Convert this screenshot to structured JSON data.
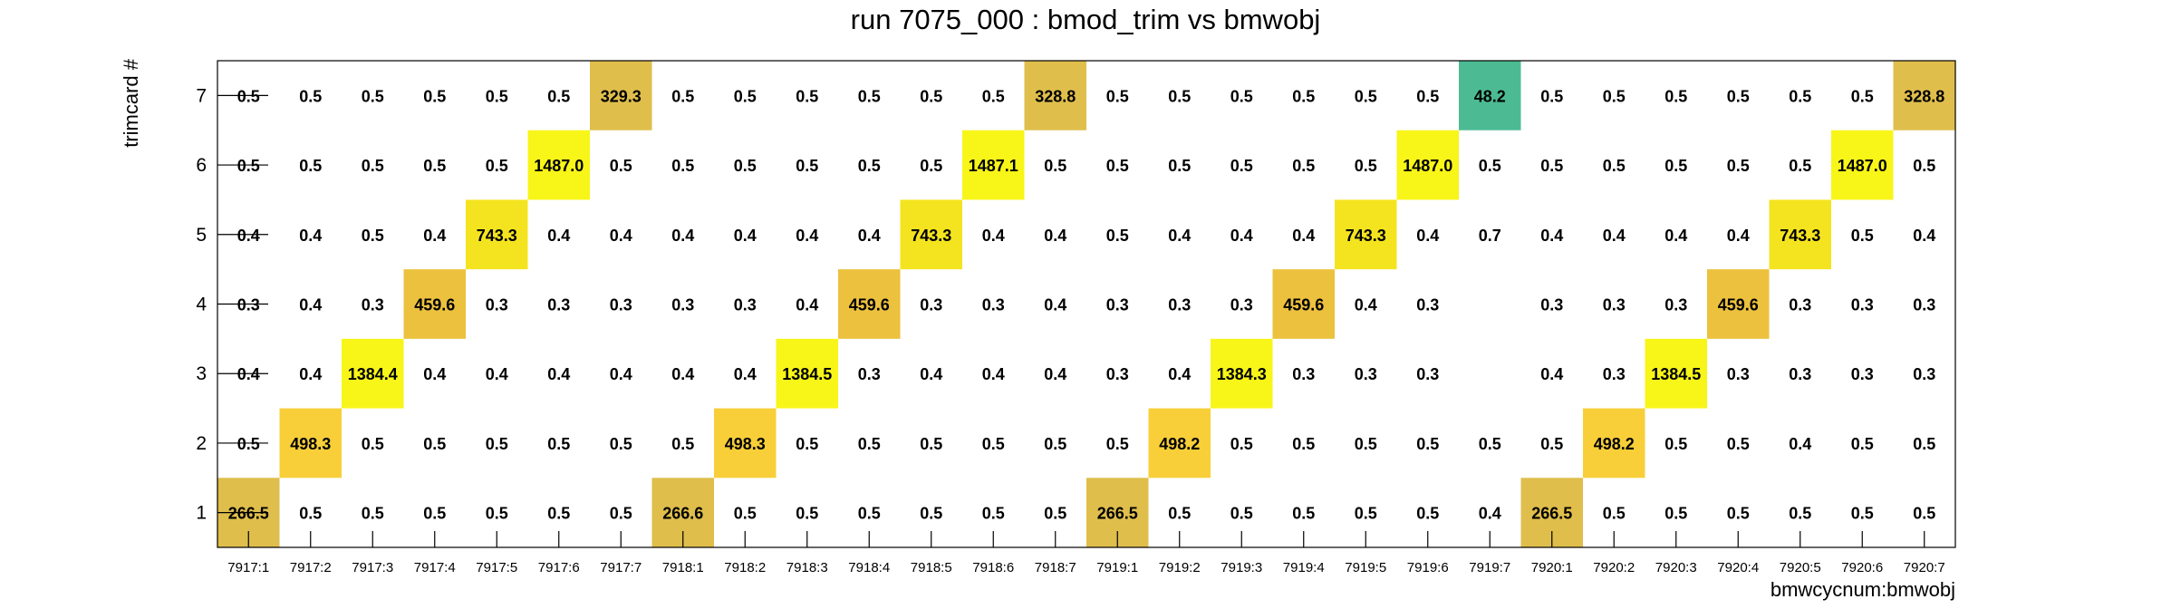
{
  "chart_data": {
    "type": "heatmap",
    "title": "run 7075_000 : bmod_trim vs bmwobj",
    "xlabel": "bmwcycnum:bmwobj",
    "ylabel": "trimcard #",
    "x_categories": [
      "7917:1",
      "7917:2",
      "7917:3",
      "7917:4",
      "7917:5",
      "7917:6",
      "7917:7",
      "7918:1",
      "7918:2",
      "7918:3",
      "7918:4",
      "7918:5",
      "7918:6",
      "7918:7",
      "7919:1",
      "7919:2",
      "7919:3",
      "7919:4",
      "7919:5",
      "7919:6",
      "7919:7",
      "7920:1",
      "7920:2",
      "7920:3",
      "7920:4",
      "7920:5",
      "7920:6",
      "7920:7"
    ],
    "y_categories": [
      "1",
      "2",
      "3",
      "4",
      "5",
      "6",
      "7"
    ],
    "values": [
      [
        266.5,
        0.5,
        0.5,
        0.5,
        0.5,
        0.5,
        0.5,
        266.6,
        0.5,
        0.5,
        0.5,
        0.5,
        0.5,
        0.5,
        266.5,
        0.5,
        0.5,
        0.5,
        0.5,
        0.5,
        0.4,
        266.5,
        0.5,
        0.5,
        0.5,
        0.5,
        0.5,
        0.5
      ],
      [
        0.5,
        498.3,
        0.5,
        0.5,
        0.5,
        0.5,
        0.5,
        0.5,
        498.3,
        0.5,
        0.5,
        0.5,
        0.5,
        0.5,
        0.5,
        498.2,
        0.5,
        0.5,
        0.5,
        0.5,
        0.5,
        0.5,
        498.2,
        0.5,
        0.5,
        0.4,
        0.5,
        0.5
      ],
      [
        0.4,
        0.4,
        1384.4,
        0.4,
        0.4,
        0.4,
        0.4,
        0.4,
        0.4,
        1384.5,
        0.3,
        0.4,
        0.4,
        0.4,
        0.3,
        0.4,
        1384.3,
        0.3,
        0.3,
        0.3,
        null,
        0.4,
        0.3,
        1384.5,
        0.3,
        0.3,
        0.3,
        0.3
      ],
      [
        0.3,
        0.4,
        0.3,
        459.6,
        0.3,
        0.3,
        0.3,
        0.3,
        0.3,
        0.4,
        459.6,
        0.3,
        0.3,
        0.4,
        0.3,
        0.3,
        0.3,
        459.6,
        0.4,
        0.3,
        null,
        0.3,
        0.3,
        0.3,
        459.6,
        0.3,
        0.3,
        0.3
      ],
      [
        0.4,
        0.4,
        0.5,
        0.4,
        743.3,
        0.4,
        0.4,
        0.4,
        0.4,
        0.4,
        0.4,
        743.3,
        0.4,
        0.4,
        0.5,
        0.4,
        0.4,
        0.4,
        743.3,
        0.4,
        0.7,
        0.4,
        0.4,
        0.4,
        0.4,
        743.3,
        0.5,
        0.4
      ],
      [
        0.5,
        0.5,
        0.5,
        0.5,
        0.5,
        1487.0,
        0.5,
        0.5,
        0.5,
        0.5,
        0.5,
        0.5,
        1487.1,
        0.5,
        0.5,
        0.5,
        0.5,
        0.5,
        0.5,
        1487.0,
        0.5,
        0.5,
        0.5,
        0.5,
        0.5,
        0.5,
        1487.0,
        0.5
      ],
      [
        0.5,
        0.5,
        0.5,
        0.5,
        0.5,
        0.5,
        329.3,
        0.5,
        0.5,
        0.5,
        0.5,
        0.5,
        0.5,
        328.8,
        0.5,
        0.5,
        0.5,
        0.5,
        0.5,
        0.5,
        48.2,
        0.5,
        0.5,
        0.5,
        0.5,
        0.5,
        0.5,
        328.8
      ]
    ],
    "colored_threshold": 10,
    "colors": {
      "1487": "#f8f519",
      "1384": "#f8f519",
      "743": "#f4e41f",
      "498": "#f8cf38",
      "459": "#ecc13e",
      "329": "#dfbe4c",
      "266": "#dfbe4c",
      "48": "#4cbb93",
      "frame": "#000000",
      "background": "#ffffff"
    },
    "grid": false,
    "legend": "none"
  }
}
